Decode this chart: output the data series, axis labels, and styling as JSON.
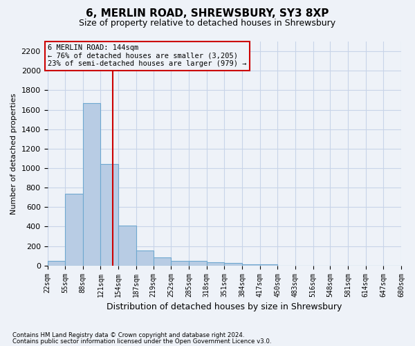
{
  "title": "6, MERLIN ROAD, SHREWSBURY, SY3 8XP",
  "subtitle": "Size of property relative to detached houses in Shrewsbury",
  "xlabel": "Distribution of detached houses by size in Shrewsbury",
  "ylabel": "Number of detached properties",
  "footnote1": "Contains HM Land Registry data © Crown copyright and database right 2024.",
  "footnote2": "Contains public sector information licensed under the Open Government Licence v3.0.",
  "bar_color": "#b8cce4",
  "bar_edge_color": "#6fa8d0",
  "grid_color": "#c8d4e8",
  "vline_color": "#cc0000",
  "annotation_box_color": "#cc0000",
  "background_color": "#eef2f8",
  "bins": [
    22,
    55,
    88,
    121,
    154,
    187,
    219,
    252,
    285,
    318,
    351,
    384,
    417,
    450,
    483,
    516,
    548,
    581,
    614,
    647,
    680
  ],
  "counts": [
    50,
    740,
    1670,
    1040,
    410,
    155,
    80,
    45,
    45,
    30,
    25,
    15,
    15,
    0,
    0,
    0,
    0,
    0,
    0,
    0
  ],
  "property_size": 144,
  "annotation_text": "6 MERLIN ROAD: 144sqm\n← 76% of detached houses are smaller (3,205)\n23% of semi-detached houses are larger (979) →",
  "ylim": [
    0,
    2300
  ],
  "yticks": [
    0,
    200,
    400,
    600,
    800,
    1000,
    1200,
    1400,
    1600,
    1800,
    2000,
    2200
  ]
}
